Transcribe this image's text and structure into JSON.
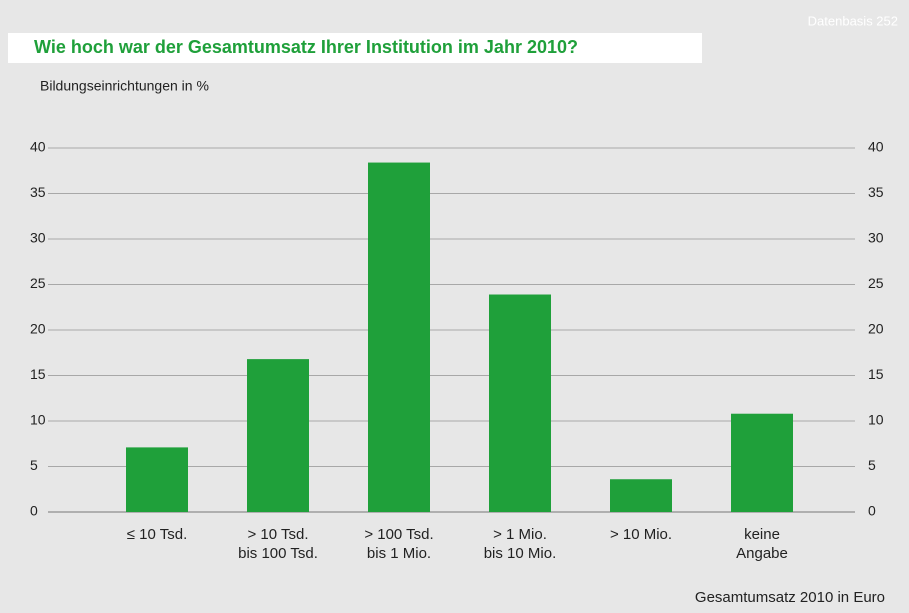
{
  "chart_data": {
    "type": "bar",
    "title": "Wie hoch war der Gesamtumsatz Ihrer Institution im Jahr 2010?",
    "source_note": "Datenbasis 252",
    "y_axis_label": "Bildungseinrichtungen in %",
    "x_axis_label": "Gesamtumsatz 2010 in Euro",
    "categories": [
      "≤ 10 Tsd.",
      "> 10 Tsd.\nbis 100 Tsd.",
      "> 100 Tsd.\nbis 1 Mio.",
      "> 1 Mio.\nbis 10 Mio.",
      "> 10 Mio.",
      "keine\nAngabe"
    ],
    "values": [
      7.1,
      16.8,
      38.4,
      23.9,
      3.6,
      10.8
    ],
    "color": "#1fa03a",
    "ylim": [
      0,
      40
    ],
    "yticks": [
      0,
      5,
      10,
      15,
      20,
      25,
      30,
      35,
      40
    ],
    "grid": true,
    "right_axis_labels": true
  }
}
